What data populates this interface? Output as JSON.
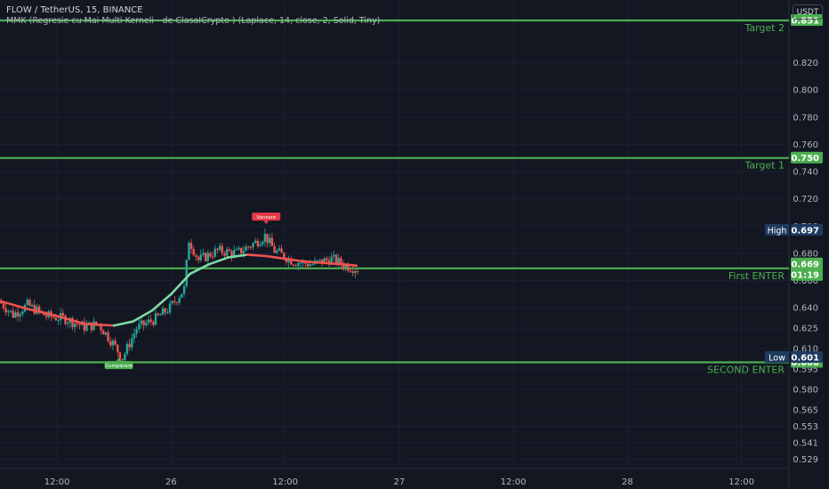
{
  "header": {
    "symbol_line": "FLOW / TetherUS, 15, BINANCE",
    "indicator_line": "MMK (Regresie cu Mai Multi Kerneli - de ClasaICrypto ) (Laplace, 14, close, 2, Solid, Tiny)",
    "currency_button": "USDT"
  },
  "colors": {
    "background": "#131722",
    "level_line": "#4caf50",
    "up_candle": "#26a69a",
    "down_candle": "#ef5350",
    "kernel_bull": "#7ed9a6",
    "kernel_bear": "#ef5350",
    "axis_text": "#b2b5be",
    "high_low_label_bg": "#1e3a5f"
  },
  "chart_data": {
    "type": "candlestick",
    "y_axis": {
      "ticks": [
        "0.851",
        "0.820",
        "0.800",
        "0.780",
        "0.760",
        "0.740",
        "0.720",
        "0.700",
        "0.680",
        "0.660",
        "0.640",
        "0.625",
        "0.610",
        "0.595",
        "0.580",
        "0.565",
        "0.553",
        "0.541",
        "0.529"
      ],
      "min": 0.522,
      "max": 0.866
    },
    "x_axis": {
      "ticks": [
        "12:00",
        "26",
        "12:00",
        "27",
        "12:00",
        "28",
        "12:00"
      ],
      "range": [
        "2023-02-25T06:00",
        "2023-02-28T17:00"
      ]
    },
    "levels": [
      {
        "label": "Target 2",
        "price": 0.851,
        "tag": "0.851"
      },
      {
        "label": "Target 1",
        "price": 0.75,
        "tag": "0.750"
      },
      {
        "label": "First ENTER",
        "price": 0.669,
        "tag": "0.669"
      },
      {
        "label": "SECOND ENTER",
        "price": 0.6,
        "tag": "0.600"
      }
    ],
    "price_tags": {
      "high": {
        "label": "High",
        "value": "0.697"
      },
      "low": {
        "label": "Low",
        "value": "0.601"
      },
      "last": {
        "value": "0.669",
        "countdown": "01:19"
      }
    },
    "signals": [
      {
        "type": "sell",
        "label": "Vanzare",
        "time": "2023-02-26T10:00",
        "price": 0.707
      },
      {
        "type": "buy",
        "label": "Cumparare",
        "time": "2023-02-25T18:30",
        "price": 0.598
      }
    ],
    "price_path": [
      [
        "2023-02-25T06:00",
        0.645
      ],
      [
        "2023-02-25T07:30",
        0.635
      ],
      [
        "2023-02-25T09:00",
        0.642
      ],
      [
        "2023-02-25T11:00",
        0.634
      ],
      [
        "2023-02-25T13:00",
        0.632
      ],
      [
        "2023-02-25T15:00",
        0.626
      ],
      [
        "2023-02-25T16:30",
        0.628
      ],
      [
        "2023-02-25T18:00",
        0.614
      ],
      [
        "2023-02-25T19:00",
        0.603
      ],
      [
        "2023-02-25T20:30",
        0.625
      ],
      [
        "2023-02-25T22:30",
        0.632
      ],
      [
        "2023-02-26T00:00",
        0.64
      ],
      [
        "2023-02-26T01:30",
        0.654
      ],
      [
        "2023-02-26T02:00",
        0.69
      ],
      [
        "2023-02-26T03:00",
        0.675
      ],
      [
        "2023-02-26T05:00",
        0.682
      ],
      [
        "2023-02-26T07:00",
        0.68
      ],
      [
        "2023-02-26T09:00",
        0.688
      ],
      [
        "2023-02-26T10:00",
        0.693
      ],
      [
        "2023-02-26T11:00",
        0.682
      ],
      [
        "2023-02-26T13:00",
        0.674
      ],
      [
        "2023-02-26T15:00",
        0.672
      ],
      [
        "2023-02-26T17:00",
        0.676
      ],
      [
        "2023-02-26T18:30",
        0.671
      ],
      [
        "2023-02-26T19:30",
        0.669
      ]
    ],
    "kernel": [
      [
        "2023-02-25T06:00",
        0.645
      ],
      [
        "2023-02-25T09:00",
        0.639
      ],
      [
        "2023-02-25T12:00",
        0.634
      ],
      [
        "2023-02-25T15:00",
        0.628
      ],
      [
        "2023-02-25T18:00",
        0.627
      ],
      [
        "2023-02-25T20:00",
        0.63
      ],
      [
        "2023-02-25T22:00",
        0.638
      ],
      [
        "2023-02-26T00:00",
        0.65
      ],
      [
        "2023-02-26T02:00",
        0.665
      ],
      [
        "2023-02-26T04:00",
        0.672
      ],
      [
        "2023-02-26T06:00",
        0.677
      ],
      [
        "2023-02-26T08:00",
        0.679
      ],
      [
        "2023-02-26T10:00",
        0.678
      ],
      [
        "2023-02-26T12:00",
        0.676
      ],
      [
        "2023-02-26T14:00",
        0.674
      ],
      [
        "2023-02-26T16:00",
        0.673
      ],
      [
        "2023-02-26T18:00",
        0.672
      ],
      [
        "2023-02-26T19:30",
        0.671
      ]
    ]
  }
}
